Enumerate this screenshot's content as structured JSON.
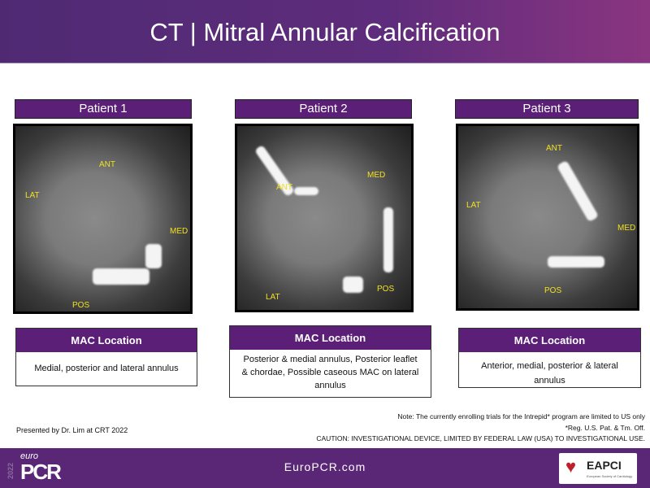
{
  "title": "CT | Mitral Annular Calcification",
  "patients": [
    {
      "label": "Patient 1",
      "image_labels": {
        "ant": "ANT",
        "lat": "LAT",
        "med": "MED",
        "pos": "POS"
      },
      "mac_header": "MAC Location",
      "mac_text": "Medial, posterior and lateral annulus"
    },
    {
      "label": "Patient 2",
      "image_labels": {
        "ant": "ANT",
        "lat": "LAT",
        "med": "MED",
        "pos": "POS"
      },
      "mac_header": "MAC Location",
      "mac_text": "Posterior & medial annulus, Posterior leaflet & chordae, Possible caseous MAC on lateral annulus"
    },
    {
      "label": "Patient 3",
      "image_labels": {
        "ant": "ANT",
        "lat": "LAT",
        "med": "MED",
        "pos": "POS"
      },
      "mac_header": "MAC Location",
      "mac_text": "Anterior, medial, posterior & lateral annulus"
    }
  ],
  "presenter": "Presented by Dr. Lim at CRT 2022",
  "notes": {
    "line1": "Note: The currently enrolling trials for the Intrepid* program are limited to US only",
    "line2": "*Reg. U.S. Pat. & Tm. Off.",
    "line3": "CAUTION:  INVESTIGATIONAL DEVICE, LIMITED BY FEDERAL LAW (USA) TO INVESTIGATIONAL  USE."
  },
  "footer": {
    "year": "2022",
    "logo_small": "euro",
    "logo_big": "PCR",
    "url": "EuroPCR.com",
    "partner": "EAPCI",
    "partner_sub": "European Society of Cardiology"
  },
  "colors": {
    "purple": "#5c1f78",
    "label_yellow": "#f0e020"
  }
}
